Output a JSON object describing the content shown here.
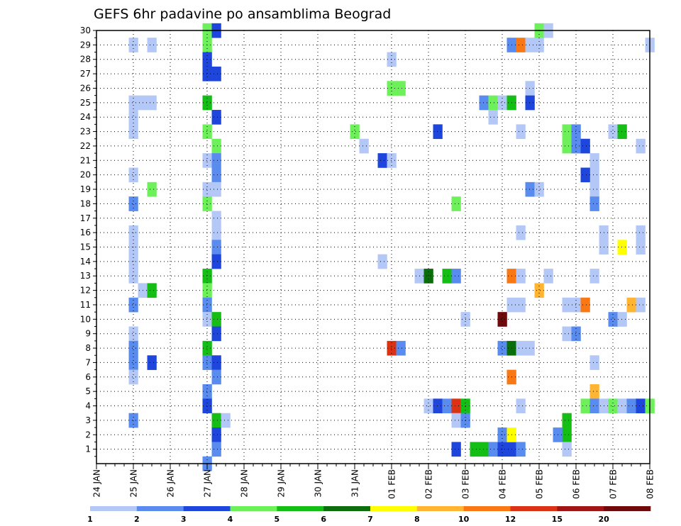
{
  "chart_data": {
    "type": "heatmap",
    "title": "GEFS 6hr padavine po ansamblima Beograd",
    "xlabel": "",
    "ylabel": "",
    "x_tick_labels": [
      "24 JAN",
      "25 JAN",
      "26 JAN",
      "27 JAN",
      "28 JAN",
      "29 JAN",
      "30 JAN",
      "31 JAN",
      "01 FEB",
      "02 FEB",
      "03 FEB",
      "04 FEB",
      "05 FEB",
      "06 FEB",
      "07 FEB",
      "08 FEB"
    ],
    "x_range": [
      "24 JAN 00Z",
      "08 FEB 00Z"
    ],
    "time_step_hours": 6,
    "y_tick_labels": [
      "1",
      "2",
      "3",
      "4",
      "5",
      "6",
      "7",
      "8",
      "9",
      "10",
      "11",
      "12",
      "13",
      "14",
      "15",
      "16",
      "17",
      "18",
      "19",
      "20",
      "21",
      "22",
      "23",
      "24",
      "25",
      "26",
      "27",
      "28",
      "29",
      "30"
    ],
    "y_range": [
      1,
      30
    ],
    "grid": true,
    "legend": {
      "placement": "bottom",
      "labels": [
        "1",
        "2",
        "3",
        "4",
        "5",
        "6",
        "7",
        "8",
        "10",
        "12",
        "15",
        "20"
      ],
      "colors": [
        "#b4c8f8",
        "#5a8cf0",
        "#1e46dc",
        "#6ef05a",
        "#14be14",
        "#0a6e0a",
        "#ffff00",
        "#ffb432",
        "#fa7814",
        "#dc3214",
        "#a01414",
        "#6e0a0a"
      ]
    },
    "cells": [
      {
        "t": "25 JAN 00Z",
        "member": 29,
        "level": 1
      },
      {
        "t": "25 JAN 12Z",
        "member": 29,
        "level": 1
      },
      {
        "t": "27 JAN 00Z",
        "member": 30,
        "level": 4
      },
      {
        "t": "27 JAN 06Z",
        "member": 30,
        "level": 3
      },
      {
        "t": "27 JAN 00Z",
        "member": 29,
        "level": 4
      },
      {
        "t": "27 JAN 00Z",
        "member": 28,
        "level": 3
      },
      {
        "t": "27 JAN 00Z",
        "member": 27,
        "level": 3
      },
      {
        "t": "27 JAN 06Z",
        "member": 27,
        "level": 3
      },
      {
        "t": "25 JAN 00Z",
        "member": 25,
        "level": 1
      },
      {
        "t": "25 JAN 06Z",
        "member": 25,
        "level": 1
      },
      {
        "t": "25 JAN 12Z",
        "member": 25,
        "level": 1
      },
      {
        "t": "25 JAN 00Z",
        "member": 24,
        "level": 1
      },
      {
        "t": "25 JAN 00Z",
        "member": 23,
        "level": 1
      },
      {
        "t": "27 JAN 00Z",
        "member": 25,
        "level": 5
      },
      {
        "t": "27 JAN 06Z",
        "member": 24,
        "level": 3
      },
      {
        "t": "27 JAN 00Z",
        "member": 23,
        "level": 4
      },
      {
        "t": "27 JAN 06Z",
        "member": 22,
        "level": 4
      },
      {
        "t": "27 JAN 00Z",
        "member": 21,
        "level": 1
      },
      {
        "t": "27 JAN 06Z",
        "member": 21,
        "level": 2
      },
      {
        "t": "27 JAN 06Z",
        "member": 20,
        "level": 2
      },
      {
        "t": "25 JAN 00Z",
        "member": 20,
        "level": 1
      },
      {
        "t": "25 JAN 12Z",
        "member": 19,
        "level": 4
      },
      {
        "t": "27 JAN 00Z",
        "member": 19,
        "level": 1
      },
      {
        "t": "27 JAN 06Z",
        "member": 19,
        "level": 1
      },
      {
        "t": "25 JAN 00Z",
        "member": 18,
        "level": 2
      },
      {
        "t": "27 JAN 00Z",
        "member": 18,
        "level": 4
      },
      {
        "t": "27 JAN 06Z",
        "member": 17,
        "level": 1
      },
      {
        "t": "27 JAN 06Z",
        "member": 16,
        "level": 1
      },
      {
        "t": "25 JAN 00Z",
        "member": 16,
        "level": 1
      },
      {
        "t": "25 JAN 00Z",
        "member": 15,
        "level": 1
      },
      {
        "t": "25 JAN 00Z",
        "member": 14,
        "level": 1
      },
      {
        "t": "25 JAN 00Z",
        "member": 13,
        "level": 1
      },
      {
        "t": "27 JAN 06Z",
        "member": 15,
        "level": 2
      },
      {
        "t": "27 JAN 06Z",
        "member": 14,
        "level": 3
      },
      {
        "t": "27 JAN 00Z",
        "member": 13,
        "level": 5
      },
      {
        "t": "27 JAN 00Z",
        "member": 12,
        "level": 4
      },
      {
        "t": "25 JAN 06Z",
        "member": 12,
        "level": 1
      },
      {
        "t": "25 JAN 12Z",
        "member": 12,
        "level": 5
      },
      {
        "t": "25 JAN 00Z",
        "member": 11,
        "level": 2
      },
      {
        "t": "27 JAN 00Z",
        "member": 11,
        "level": 2
      },
      {
        "t": "27 JAN 00Z",
        "member": 10,
        "level": 1
      },
      {
        "t": "27 JAN 06Z",
        "member": 10,
        "level": 5
      },
      {
        "t": "27 JAN 06Z",
        "member": 9,
        "level": 3
      },
      {
        "t": "25 JAN 00Z",
        "member": 9,
        "level": 1
      },
      {
        "t": "25 JAN 00Z",
        "member": 8,
        "level": 2
      },
      {
        "t": "25 JAN 00Z",
        "member": 7,
        "level": 2
      },
      {
        "t": "25 JAN 12Z",
        "member": 7,
        "level": 3
      },
      {
        "t": "25 JAN 00Z",
        "member": 6,
        "level": 1
      },
      {
        "t": "27 JAN 00Z",
        "member": 8,
        "level": 5
      },
      {
        "t": "27 JAN 00Z",
        "member": 7,
        "level": 2
      },
      {
        "t": "27 JAN 06Z",
        "member": 7,
        "level": 3
      },
      {
        "t": "27 JAN 06Z",
        "member": 6,
        "level": 2
      },
      {
        "t": "27 JAN 00Z",
        "member": 5,
        "level": 2
      },
      {
        "t": "27 JAN 00Z",
        "member": 4,
        "level": 3
      },
      {
        "t": "25 JAN 00Z",
        "member": 3,
        "level": 2
      },
      {
        "t": "27 JAN 06Z",
        "member": 3,
        "level": 5
      },
      {
        "t": "27 JAN 12Z",
        "member": 3,
        "level": 1
      },
      {
        "t": "27 JAN 06Z",
        "member": 2,
        "level": 3
      },
      {
        "t": "27 JAN 06Z",
        "member": 1,
        "level": 2
      },
      {
        "t": "27 JAN 00Z",
        "member": 0,
        "level": 2
      },
      {
        "t": "31 JAN 00Z",
        "member": 23,
        "level": 4
      },
      {
        "t": "31 JAN 06Z",
        "member": 22,
        "level": 1
      },
      {
        "t": "01 FEB 00Z",
        "member": 28,
        "level": 1
      },
      {
        "t": "01 FEB 00Z",
        "member": 26,
        "level": 4
      },
      {
        "t": "01 FEB 06Z",
        "member": 26,
        "level": 4
      },
      {
        "t": "31 JAN 18Z",
        "member": 21,
        "level": 3
      },
      {
        "t": "01 FEB 00Z",
        "member": 21,
        "level": 1
      },
      {
        "t": "31 JAN 18Z",
        "member": 14,
        "level": 1
      },
      {
        "t": "01 FEB 00Z",
        "member": 8,
        "level": 10
      },
      {
        "t": "01 FEB 06Z",
        "member": 8,
        "level": 2
      },
      {
        "t": "01 FEB 18Z",
        "member": 13,
        "level": 1
      },
      {
        "t": "02 FEB 00Z",
        "member": 13,
        "level": 6
      },
      {
        "t": "02 FEB 12Z",
        "member": 13,
        "level": 5
      },
      {
        "t": "02 FEB 18Z",
        "member": 13,
        "level": 2
      },
      {
        "t": "02 FEB 06Z",
        "member": 23,
        "level": 3
      },
      {
        "t": "02 FEB 18Z",
        "member": 18,
        "level": 4
      },
      {
        "t": "02 FEB 00Z",
        "member": 4,
        "level": 1
      },
      {
        "t": "02 FEB 06Z",
        "member": 4,
        "level": 3
      },
      {
        "t": "02 FEB 12Z",
        "member": 4,
        "level": 2
      },
      {
        "t": "02 FEB 18Z",
        "member": 4,
        "level": 10
      },
      {
        "t": "03 FEB 00Z",
        "member": 4,
        "level": 5
      },
      {
        "t": "02 FEB 18Z",
        "member": 3,
        "level": 1
      },
      {
        "t": "03 FEB 00Z",
        "member": 3,
        "level": 2
      },
      {
        "t": "02 FEB 18Z",
        "member": 1,
        "level": 3
      },
      {
        "t": "03 FEB 00Z",
        "member": 10,
        "level": 1
      },
      {
        "t": "03 FEB 06Z",
        "member": 1,
        "level": 5
      },
      {
        "t": "03 FEB 12Z",
        "member": 1,
        "level": 5
      },
      {
        "t": "03 FEB 18Z",
        "member": 1,
        "level": 2
      },
      {
        "t": "04 FEB 00Z",
        "member": 1,
        "level": 3
      },
      {
        "t": "04 FEB 06Z",
        "member": 1,
        "level": 3
      },
      {
        "t": "04 FEB 12Z",
        "member": 1,
        "level": 2
      },
      {
        "t": "03 FEB 12Z",
        "member": 25,
        "level": 2
      },
      {
        "t": "03 FEB 18Z",
        "member": 25,
        "level": 4
      },
      {
        "t": "04 FEB 00Z",
        "member": 25,
        "level": 1
      },
      {
        "t": "04 FEB 06Z",
        "member": 25,
        "level": 5
      },
      {
        "t": "03 FEB 18Z",
        "member": 24,
        "level": 1
      },
      {
        "t": "04 FEB 00Z",
        "member": 10,
        "level": 12
      },
      {
        "t": "04 FEB 06Z",
        "member": 13,
        "level": 9
      },
      {
        "t": "04 FEB 12Z",
        "member": 13,
        "level": 1
      },
      {
        "t": "04 FEB 06Z",
        "member": 11,
        "level": 1
      },
      {
        "t": "04 FEB 12Z",
        "member": 11,
        "level": 1
      },
      {
        "t": "04 FEB 00Z",
        "member": 8,
        "level": 2
      },
      {
        "t": "04 FEB 06Z",
        "member": 8,
        "level": 6
      },
      {
        "t": "04 FEB 12Z",
        "member": 8,
        "level": 1
      },
      {
        "t": "04 FEB 18Z",
        "member": 8,
        "level": 1
      },
      {
        "t": "04 FEB 06Z",
        "member": 6,
        "level": 9
      },
      {
        "t": "04 FEB 12Z",
        "member": 4,
        "level": 1
      },
      {
        "t": "04 FEB 00Z",
        "member": 2,
        "level": 2
      },
      {
        "t": "04 FEB 06Z",
        "member": 2,
        "level": 7
      },
      {
        "t": "04 FEB 12Z",
        "member": 29,
        "level": 9
      },
      {
        "t": "04 FEB 06Z",
        "member": 29,
        "level": 2
      },
      {
        "t": "04 FEB 18Z",
        "member": 29,
        "level": 1
      },
      {
        "t": "05 FEB 00Z",
        "member": 29,
        "level": 1
      },
      {
        "t": "05 FEB 00Z",
        "member": 30,
        "level": 4
      },
      {
        "t": "05 FEB 06Z",
        "member": 30,
        "level": 1
      },
      {
        "t": "04 FEB 18Z",
        "member": 26,
        "level": 1
      },
      {
        "t": "04 FEB 18Z",
        "member": 25,
        "level": 3
      },
      {
        "t": "04 FEB 12Z",
        "member": 23,
        "level": 1
      },
      {
        "t": "04 FEB 18Z",
        "member": 19,
        "level": 2
      },
      {
        "t": "05 FEB 00Z",
        "member": 19,
        "level": 1
      },
      {
        "t": "04 FEB 12Z",
        "member": 16,
        "level": 1
      },
      {
        "t": "05 FEB 00Z",
        "member": 12,
        "level": 8
      },
      {
        "t": "05 FEB 06Z",
        "member": 13,
        "level": 1
      },
      {
        "t": "05 FEB 18Z",
        "member": 23,
        "level": 4
      },
      {
        "t": "06 FEB 00Z",
        "member": 23,
        "level": 2
      },
      {
        "t": "05 FEB 18Z",
        "member": 22,
        "level": 4
      },
      {
        "t": "06 FEB 00Z",
        "member": 22,
        "level": 2
      },
      {
        "t": "06 FEB 06Z",
        "member": 22,
        "level": 3
      },
      {
        "t": "06 FEB 12Z",
        "member": 21,
        "level": 1
      },
      {
        "t": "06 FEB 12Z",
        "member": 20,
        "level": 1
      },
      {
        "t": "06 FEB 06Z",
        "member": 20,
        "level": 3
      },
      {
        "t": "06 FEB 12Z",
        "member": 19,
        "level": 1
      },
      {
        "t": "06 FEB 12Z",
        "member": 18,
        "level": 2
      },
      {
        "t": "05 FEB 18Z",
        "member": 11,
        "level": 1
      },
      {
        "t": "06 FEB 00Z",
        "member": 11,
        "level": 1
      },
      {
        "t": "06 FEB 06Z",
        "member": 11,
        "level": 9
      },
      {
        "t": "05 FEB 18Z",
        "member": 9,
        "level": 1
      },
      {
        "t": "06 FEB 00Z",
        "member": 9,
        "level": 2
      },
      {
        "t": "06 FEB 12Z",
        "member": 7,
        "level": 1
      },
      {
        "t": "06 FEB 12Z",
        "member": 13,
        "level": 1
      },
      {
        "t": "06 FEB 18Z",
        "member": 16,
        "level": 1
      },
      {
        "t": "06 FEB 18Z",
        "member": 15,
        "level": 1
      },
      {
        "t": "06 FEB 12Z",
        "member": 5,
        "level": 8
      },
      {
        "t": "06 FEB 06Z",
        "member": 4,
        "level": 4
      },
      {
        "t": "06 FEB 12Z",
        "member": 4,
        "level": 2
      },
      {
        "t": "06 FEB 18Z",
        "member": 4,
        "level": 1
      },
      {
        "t": "07 FEB 00Z",
        "member": 4,
        "level": 4
      },
      {
        "t": "07 FEB 06Z",
        "member": 4,
        "level": 1
      },
      {
        "t": "07 FEB 12Z",
        "member": 4,
        "level": 2
      },
      {
        "t": "07 FEB 18Z",
        "member": 4,
        "level": 3
      },
      {
        "t": "08 FEB 00Z",
        "member": 4,
        "level": 4
      },
      {
        "t": "05 FEB 18Z",
        "member": 3,
        "level": 5
      },
      {
        "t": "05 FEB 18Z",
        "member": 2,
        "level": 5
      },
      {
        "t": "05 FEB 12Z",
        "member": 2,
        "level": 2
      },
      {
        "t": "05 FEB 18Z",
        "member": 1,
        "level": 1
      },
      {
        "t": "07 FEB 00Z",
        "member": 23,
        "level": 1
      },
      {
        "t": "07 FEB 06Z",
        "member": 23,
        "level": 5
      },
      {
        "t": "07 FEB 06Z",
        "member": 15,
        "level": 7
      },
      {
        "t": "07 FEB 18Z",
        "member": 15,
        "level": 1
      },
      {
        "t": "07 FEB 18Z",
        "member": 16,
        "level": 1
      },
      {
        "t": "07 FEB 12Z",
        "member": 11,
        "level": 8
      },
      {
        "t": "07 FEB 18Z",
        "member": 11,
        "level": 1
      },
      {
        "t": "07 FEB 00Z",
        "member": 10,
        "level": 2
      },
      {
        "t": "07 FEB 06Z",
        "member": 10,
        "level": 1
      },
      {
        "t": "07 FEB 18Z",
        "member": 22,
        "level": 1
      },
      {
        "t": "08 FEB 00Z",
        "member": 29,
        "level": 1
      }
    ]
  }
}
